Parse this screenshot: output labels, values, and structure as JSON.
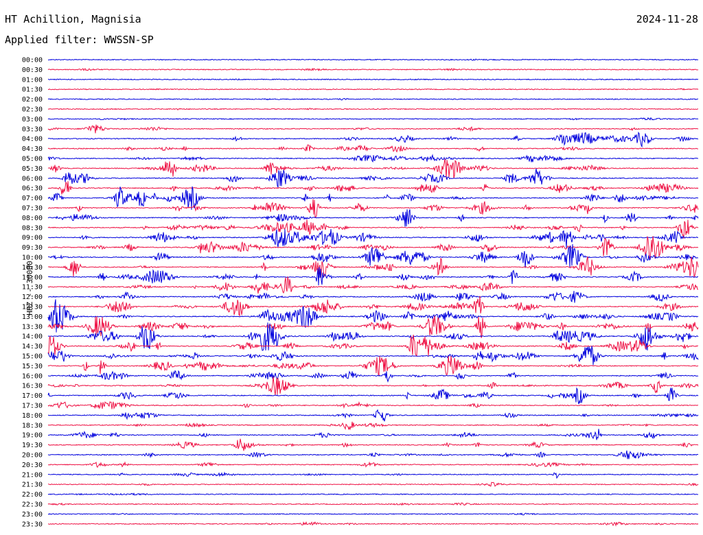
{
  "header": {
    "station": "HT Achillion, Magnisia",
    "date": "2024-11-28",
    "filter_label": "Applied filter: WWSSN-SP"
  },
  "channel_label": "HHZ -- 30000",
  "colors": {
    "even_trace": "#0000dd",
    "odd_trace": "#ee1144"
  },
  "chart_data": {
    "type": "line",
    "title": "",
    "ylabel": "HHZ -- 30000",
    "row_labels": [
      "00:00",
      "00:30",
      "01:00",
      "01:30",
      "02:00",
      "02:30",
      "03:00",
      "03:30",
      "04:00",
      "04:30",
      "05:00",
      "05:30",
      "06:00",
      "06:30",
      "07:00",
      "07:30",
      "08:00",
      "08:30",
      "09:00",
      "09:30",
      "10:00",
      "10:30",
      "11:00",
      "11:30",
      "12:00",
      "12:30",
      "13:00",
      "13:30",
      "14:00",
      "14:30",
      "15:00",
      "15:30",
      "16:00",
      "16:30",
      "17:00",
      "17:30",
      "18:00",
      "18:30",
      "19:00",
      "19:30",
      "20:00",
      "20:30",
      "21:00",
      "21:30",
      "22:00",
      "22:30",
      "23:00",
      "23:30"
    ],
    "activity_level": [
      0.1,
      0.15,
      0.12,
      0.1,
      0.08,
      0.1,
      0.2,
      0.3,
      0.5,
      0.5,
      0.6,
      0.7,
      0.7,
      0.75,
      0.8,
      0.75,
      0.7,
      0.75,
      0.85,
      0.9,
      0.85,
      0.8,
      0.75,
      0.7,
      0.8,
      0.85,
      0.9,
      0.85,
      0.9,
      0.9,
      0.85,
      0.8,
      0.75,
      0.6,
      0.6,
      0.55,
      0.5,
      0.45,
      0.5,
      0.45,
      0.4,
      0.35,
      0.3,
      0.2,
      0.12,
      0.15,
      0.12,
      0.3
    ]
  }
}
